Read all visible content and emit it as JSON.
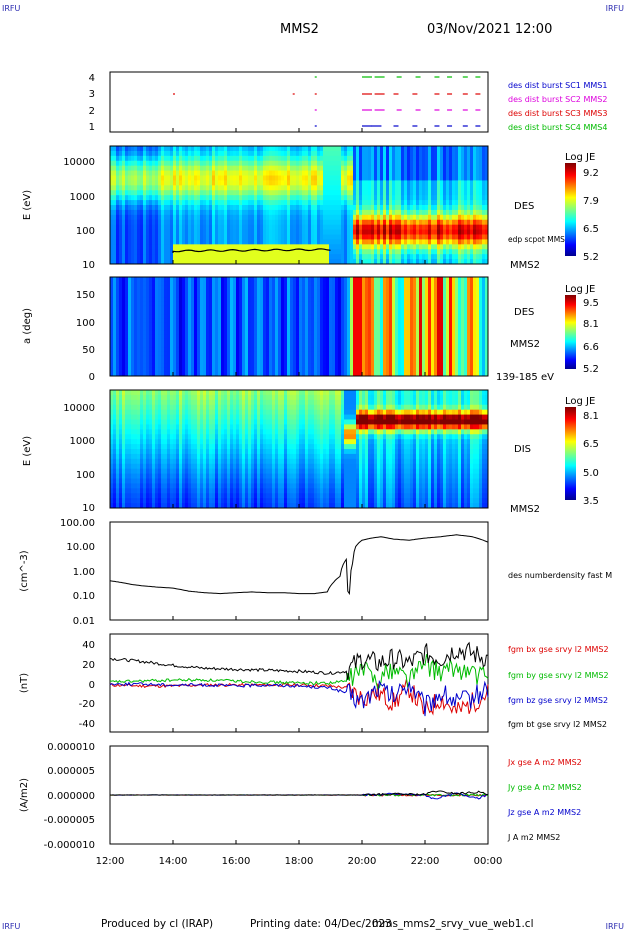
{
  "header": {
    "corner_left_top": "IRFU",
    "corner_right_top": "IRFU",
    "corner_left_bottom": "IRFU",
    "corner_right_bottom": "IRFU",
    "spacecraft": "MMS2",
    "datetime": "03/Nov/2021 12:00"
  },
  "footer": {
    "produced": "Produced by cl (IRAP)",
    "printing": "Printing date: 04/Dec/2023",
    "script": "mms_mms2_srvy_vue_web1.cl"
  },
  "x_axis": {
    "ticks": [
      "12:00",
      "14:00",
      "16:00",
      "18:00",
      "20:00",
      "22:00",
      "00:00"
    ]
  },
  "colors": {
    "series_c1": "#0000cc",
    "series_c2": "#dd00dd",
    "series_c3": "#dd0000",
    "series_c4": "#00bb00",
    "label_black": "#000000"
  },
  "panels": {
    "burst": {
      "y_ticks": [
        "4",
        "3",
        "2",
        "1"
      ],
      "legend": [
        "des dist burst SC1 MMS1",
        "des dist burst SC2 MMS2",
        "des dist burst SC3 MMS3",
        "des dist burst SC4 MMS4"
      ]
    },
    "des_energy": {
      "ylabel": "E (eV)",
      "y_ticks": [
        "10000",
        "1000",
        "100",
        "10"
      ],
      "species": "DES",
      "overlay_label": "edp scpot MMS2",
      "sc_label": "MMS2",
      "colorbar": {
        "title": "Log JE",
        "ticks": [
          "9.2",
          "7.9",
          "6.5",
          "5.2"
        ]
      }
    },
    "des_pitch": {
      "ylabel": "a (deg)",
      "y_ticks": [
        "150",
        "100",
        "50",
        "0"
      ],
      "species": "DES",
      "sc_label": "MMS2",
      "energy_range": "139-185 eV",
      "colorbar": {
        "title": "Log JE",
        "ticks": [
          "9.5",
          "8.1",
          "6.6",
          "5.2"
        ]
      }
    },
    "dis_energy": {
      "ylabel": "E (eV)",
      "y_ticks": [
        "10000",
        "1000",
        "100",
        "10"
      ],
      "species": "DIS",
      "sc_label": "MMS2",
      "colorbar": {
        "title": "Log JE",
        "ticks": [
          "8.1",
          "6.5",
          "5.0",
          "3.5"
        ]
      }
    },
    "density": {
      "ylabel": "(cm^-3)",
      "y_ticks": [
        "100.00",
        "10.00",
        "1.00",
        "0.10",
        "0.01"
      ],
      "legend": "des numberdensity fast M"
    },
    "bfield": {
      "ylabel": "(nT)",
      "y_ticks": [
        "40",
        "20",
        "0",
        "-20",
        "-40"
      ],
      "legend": [
        "fgm bx gse srvy l2 MMS2",
        "fgm by gse srvy l2 MMS2",
        "fgm bz gse srvy l2 MMS2",
        "fgm bt gse srvy l2 MMS2"
      ]
    },
    "current": {
      "ylabel": "(A/m2)",
      "y_ticks": [
        "0.000010",
        "0.000005",
        "0.000000",
        "-0.000005",
        "-0.000010"
      ],
      "legend": [
        "Jx gse A m2 MMS2",
        "Jy gse A m2 MMS2",
        "Jz gse A m2 MMS2",
        "J A m2 MMS2"
      ]
    }
  },
  "chart_data": [
    {
      "type": "scatter",
      "title": "",
      "x_range": [
        "03/Nov/2021 12:00",
        "04/Nov/2021 00:00"
      ],
      "ylim": [
        1,
        4
      ],
      "series": [
        {
          "name": "des dist burst SC1 MMS1",
          "y": 1,
          "x_hours": [
            18.5,
            20.0,
            20.3,
            21.0,
            21.6,
            22.3,
            22.7,
            23.2,
            23.6
          ]
        },
        {
          "name": "des dist burst SC2 MMS2",
          "y": 2,
          "x_hours": [
            18.5,
            20.0,
            20.4,
            21.1,
            21.7,
            22.3,
            22.7,
            23.2,
            23.6
          ]
        },
        {
          "name": "des dist burst SC3 MMS3",
          "y": 3,
          "x_hours": [
            14.0,
            17.8,
            18.5,
            20.0,
            20.4,
            21.0,
            21.6,
            22.3,
            22.7,
            23.2,
            23.6
          ]
        },
        {
          "name": "des dist burst SC4 MMS4",
          "y": 4,
          "x_hours": [
            18.5,
            20.0,
            20.4,
            21.1,
            21.7,
            22.3,
            22.7,
            23.2,
            23.6
          ]
        }
      ]
    },
    {
      "type": "line",
      "title": "",
      "ylabel": "(cm^-3)",
      "ylim": [
        0.01,
        100
      ],
      "yscale": "log",
      "x_hours": [
        12.0,
        12.3,
        12.7,
        13.0,
        13.5,
        14.0,
        14.5,
        15.0,
        15.5,
        16.0,
        16.5,
        17.0,
        17.5,
        18.0,
        18.5,
        18.9,
        19.1,
        19.3,
        19.5,
        19.55,
        19.6,
        19.7,
        19.8,
        20.0,
        20.3,
        20.6,
        21.0,
        21.5,
        22.0,
        22.5,
        23.0,
        23.5,
        24.0
      ],
      "series": [
        {
          "name": "des numberdensity fast M",
          "values": [
            0.4,
            0.35,
            0.28,
            0.25,
            0.22,
            0.2,
            0.15,
            0.13,
            0.12,
            0.13,
            0.14,
            0.13,
            0.13,
            0.12,
            0.12,
            0.14,
            0.35,
            0.6,
            3.0,
            0.15,
            0.12,
            2.0,
            10.0,
            18.0,
            22.0,
            25.0,
            20.0,
            18.0,
            22.0,
            25.0,
            30.0,
            25.0,
            15.0
          ]
        }
      ]
    },
    {
      "type": "line",
      "title": "",
      "ylabel": "(nT)",
      "ylim": [
        -50,
        50
      ],
      "x_hours": [
        12.0,
        13.0,
        14.0,
        15.0,
        16.0,
        17.0,
        18.0,
        19.0,
        19.5,
        20.0,
        20.5,
        21.0,
        21.5,
        22.0,
        22.5,
        23.0,
        23.5,
        24.0
      ],
      "series": [
        {
          "name": "fgm bx gse srvy l2 MMS2",
          "values": [
            -2,
            -3,
            -3,
            -2,
            -2,
            -2,
            -2,
            -3,
            -5,
            -15,
            -10,
            -20,
            -5,
            -30,
            -15,
            -30,
            -20,
            -10
          ]
        },
        {
          "name": "fgm by gse srvy l2 MMS2",
          "values": [
            1,
            2,
            3,
            3,
            2,
            1,
            0,
            0,
            2,
            15,
            5,
            15,
            5,
            20,
            10,
            15,
            10,
            5
          ]
        },
        {
          "name": "fgm bz gse srvy l2 MMS2",
          "values": [
            -1,
            -1,
            -2,
            -2,
            -3,
            -2,
            -3,
            -5,
            -10,
            -20,
            -5,
            -15,
            0,
            -25,
            -10,
            -20,
            -15,
            -5
          ]
        },
        {
          "name": "fgm bt gse srvy l2 MMS2",
          "values": [
            25,
            22,
            18,
            15,
            14,
            13,
            12,
            10,
            12,
            25,
            20,
            25,
            20,
            30,
            25,
            35,
            30,
            25
          ]
        }
      ]
    },
    {
      "type": "line",
      "title": "",
      "ylabel": "(A/m2)",
      "ylim": [
        -1e-05,
        1e-05
      ],
      "x_hours": [
        12.0,
        16.0,
        20.0,
        21.0,
        22.0,
        22.3,
        23.0,
        23.7,
        24.0
      ],
      "series": [
        {
          "name": "Jx gse A m2 MMS2",
          "values": [
            0,
            0,
            0,
            0,
            0,
            0,
            0,
            0,
            0
          ]
        },
        {
          "name": "Jy gse A m2 MMS2",
          "values": [
            0,
            0,
            0,
            0,
            0,
            0,
            0,
            0,
            0
          ]
        },
        {
          "name": "Jz gse A m2 MMS2",
          "values": [
            0,
            0,
            0,
            2e-07,
            0,
            -8e-07,
            3e-07,
            -6e-07,
            0
          ]
        },
        {
          "name": "J A m2 MMS2",
          "values": [
            0,
            0,
            0,
            2e-07,
            1e-07,
            8e-07,
            3e-07,
            6e-07,
            1e-07
          ]
        }
      ]
    }
  ]
}
